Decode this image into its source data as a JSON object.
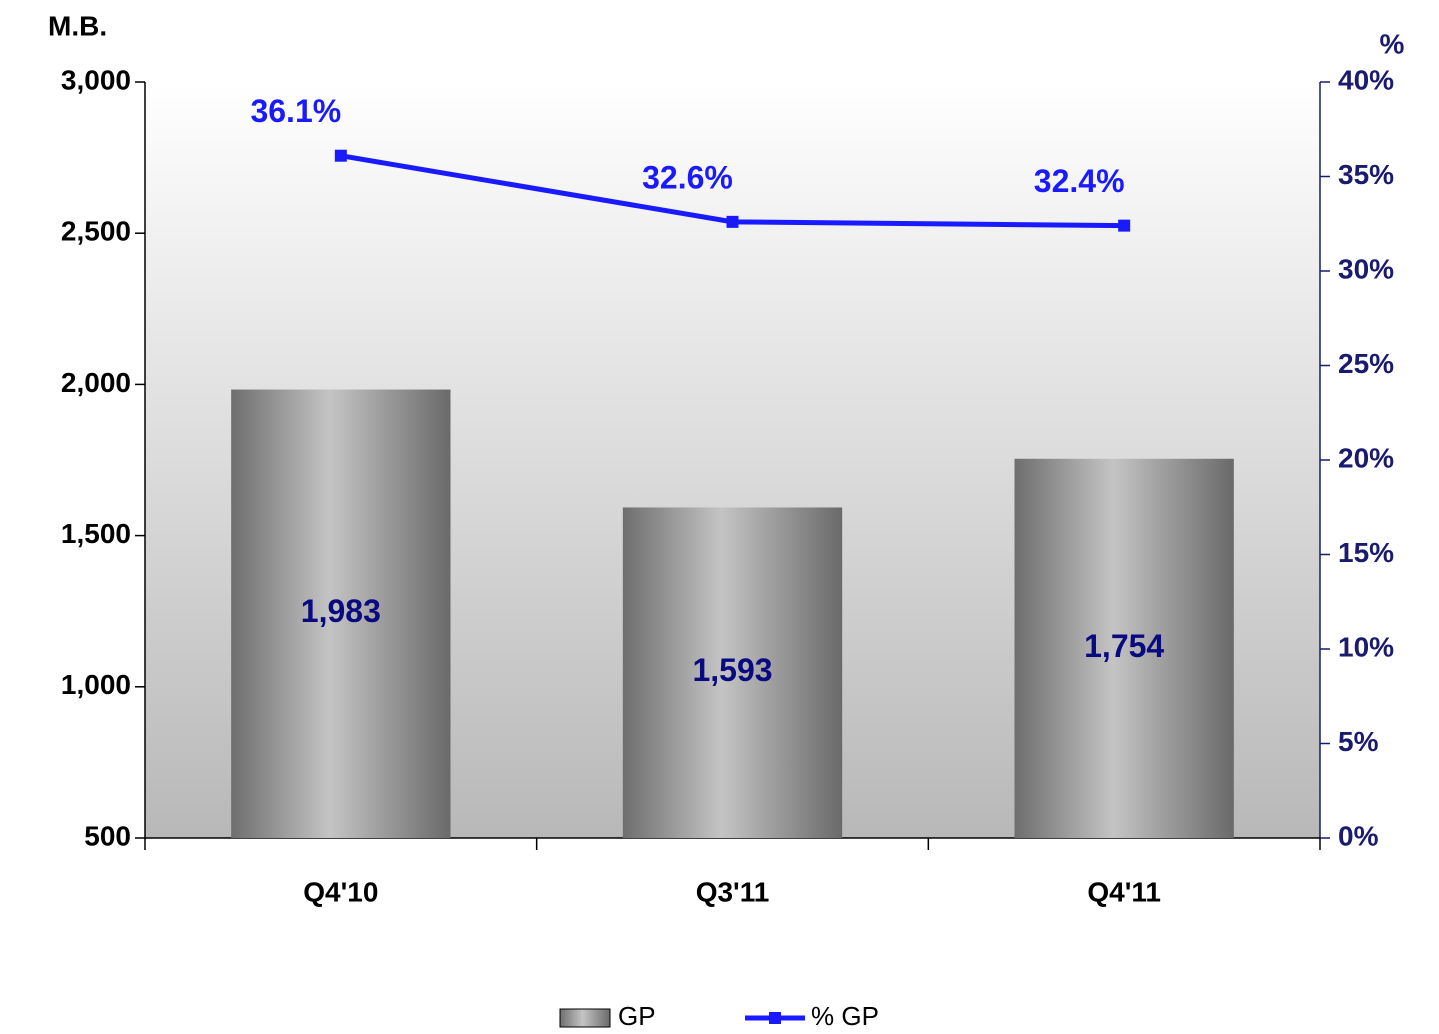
{
  "chart_data": {
    "type": "bar",
    "y_label": "M.B.",
    "y2_label": "%",
    "categories": [
      "Q4'10",
      "Q3'11",
      "Q4'11"
    ],
    "series": [
      {
        "name": "GP",
        "type": "bar",
        "color": "#8c8c8c",
        "values": [
          1983,
          1593,
          1754
        ],
        "value_labels": [
          "1,983",
          "1,593",
          "1,754"
        ]
      },
      {
        "name": "% GP",
        "type": "line",
        "axis": "y2",
        "color": "#1a1aff",
        "values": [
          36.1,
          32.6,
          32.4
        ],
        "value_labels": [
          "36.1%",
          "32.6%",
          "32.4%"
        ]
      }
    ],
    "ylim": [
      500,
      3000
    ],
    "yticks": [
      500,
      {
        "value": 1000,
        "label": "1,000"
      },
      {
        "value": 1500,
        "label": "1,500"
      },
      {
        "value": 2000,
        "label": "2,000"
      },
      {
        "value": 2500,
        "label": "2,500"
      },
      {
        "value": 3000,
        "label": "3,000"
      }
    ],
    "y2lim": [
      0,
      40
    ],
    "y2ticks": [
      {
        "value": 0,
        "label": "0%"
      },
      {
        "value": 5,
        "label": "5%"
      },
      {
        "value": 10,
        "label": "10%"
      },
      {
        "value": 15,
        "label": "15%"
      },
      {
        "value": 20,
        "label": "20%"
      },
      {
        "value": 25,
        "label": "25%"
      },
      {
        "value": 30,
        "label": "30%"
      },
      {
        "value": 35,
        "label": "35%"
      },
      {
        "value": 40,
        "label": "40%"
      }
    ],
    "legend": "bottom"
  }
}
